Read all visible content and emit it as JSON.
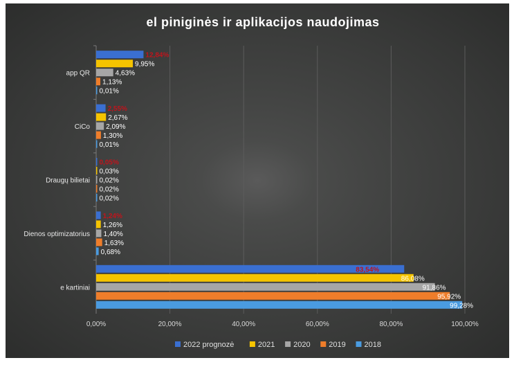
{
  "chart_data": {
    "type": "bar",
    "orientation": "horizontal",
    "title": "el piniginės ir aplikacijos naudojimas",
    "categories": [
      "app QR",
      "CiCo",
      "Draugų bilietai",
      "Dienos optimizatorius",
      "e kartiniai"
    ],
    "series": [
      {
        "name": "2022 prognozė",
        "color": "#3a6fd1",
        "label_color": "#c0141c",
        "values": [
          12.84,
          2.55,
          0.05,
          1.24,
          83.54
        ],
        "labels": [
          "12,84%",
          "2,55%",
          "0,05%",
          "1,24%",
          "83,54%"
        ]
      },
      {
        "name": "2021",
        "color": "#f5c400",
        "label_color": "#ffffff",
        "values": [
          9.95,
          2.67,
          0.03,
          1.26,
          86.08
        ],
        "labels": [
          "9,95%",
          "2,67%",
          "0,03%",
          "1,26%",
          "86,08%"
        ]
      },
      {
        "name": "2020",
        "color": "#a6a6a6",
        "label_color": "#ffffff",
        "values": [
          4.63,
          2.09,
          0.02,
          1.4,
          91.86
        ],
        "labels": [
          "4,63%",
          "2,09%",
          "0,02%",
          "1,40%",
          "91,86%"
        ]
      },
      {
        "name": "2019",
        "color": "#ef7d2a",
        "label_color": "#ffffff",
        "values": [
          1.13,
          1.3,
          0.02,
          1.63,
          95.92
        ],
        "labels": [
          "1,13%",
          "1,30%",
          "0,02%",
          "1,63%",
          "95,92%"
        ]
      },
      {
        "name": "2018",
        "color": "#4a9be0",
        "label_color": "#ffffff",
        "values": [
          0.01,
          0.01,
          0.02,
          0.68,
          99.28
        ],
        "labels": [
          "0,01%",
          "0,01%",
          "0,02%",
          "0,68%",
          "99,28%"
        ]
      }
    ],
    "xlim": [
      0,
      100
    ],
    "xticks": [
      "0,00%",
      "20,00%",
      "40,00%",
      "60,00%",
      "80,00%",
      "100,00%"
    ],
    "grid": true,
    "legend": "bottom",
    "background": "#3b3b3b"
  }
}
